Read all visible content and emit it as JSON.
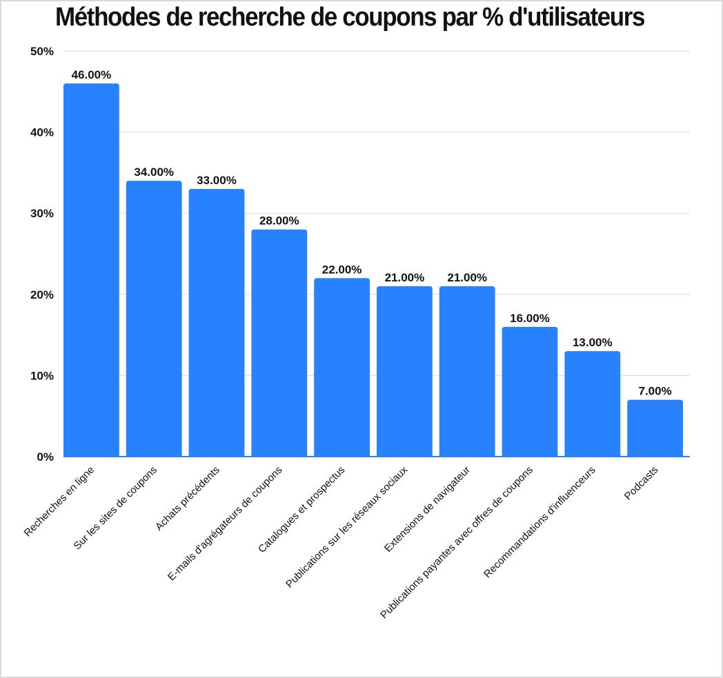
{
  "chart_data": {
    "type": "bar",
    "title": "Méthodes de recherche de coupons par % d'utilisateurs",
    "categories": [
      "Recherches en ligne",
      "Sur les sites de coupons",
      "Achats précédents",
      "E-mails d'agrégateurs de coupons",
      "Catalogues et prospectus",
      "Publications sur les réseaux sociaux",
      "Extensions de navigateur",
      "Publications payantes avec offres de coupons",
      "Recommandations d'influenceurs",
      "Podcasts"
    ],
    "values": [
      46,
      34,
      33,
      28,
      22,
      21,
      21,
      16,
      13,
      7
    ],
    "data_labels": [
      "46.00%",
      "34.00%",
      "33.00%",
      "28.00%",
      "22.00%",
      "21.00%",
      "21.00%",
      "16.00%",
      "13.00%",
      "7.00%"
    ],
    "y_ticks": [
      0,
      10,
      20,
      30,
      40,
      50
    ],
    "y_tick_labels": [
      "0%",
      "10%",
      "20%",
      "30%",
      "40%",
      "50%"
    ],
    "ylim": [
      0,
      50
    ],
    "grid": true,
    "legend": "none",
    "colors": {
      "bar": "#2882fd",
      "grid": "#d9d9d9",
      "text": "#111111"
    }
  }
}
